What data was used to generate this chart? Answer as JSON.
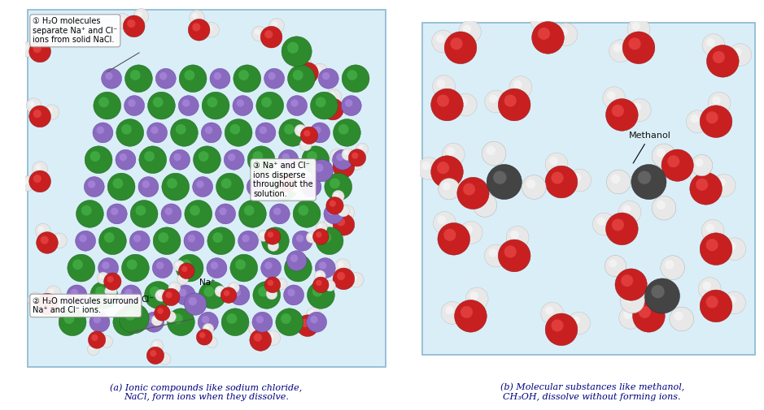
{
  "fig_width": 9.39,
  "fig_height": 5.05,
  "bg_color": "#ffffff",
  "panel_bg_light": "#daeef8",
  "panel_bg_dark": "#b8d8ec",
  "caption_a": "(a) Ionic compounds like sodium chloride,\nNaCl, form ions when they dissolve.",
  "caption_b": "(b) Molecular substances like methanol,\nCH₃OH, dissolve without forming ions.",
  "label1": "H₂O molecules\nseparate Na⁺ and Cl⁻\nions from solid NaCl.",
  "label2": "H₂O molecules surround\nNa⁺ and Cl⁻ ions.",
  "label3": "Na⁺ and Cl⁻\nions disperse\nthroughout the\nsolution.",
  "label_methanol": "Methanol",
  "label_cl": "Cl⁻",
  "label_na": "Na⁺",
  "green_color": "#2d8a2d",
  "green_dark": "#1a5c1a",
  "green_light": "#55cc55",
  "purple_color": "#8a6abf",
  "purple_dark": "#5a3a9a",
  "purple_light": "#bb99ee",
  "water_red": "#c82020",
  "water_red_light": "#ff6060",
  "water_white": "#e8e8e8",
  "water_white_light": "#ffffff",
  "carbon_color": "#444444",
  "carbon_light": "#888888",
  "caption_color": "#000080"
}
